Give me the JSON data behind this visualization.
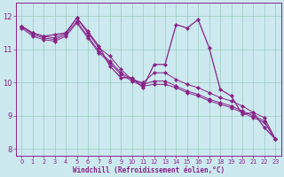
{
  "xlabel": "Windchill (Refroidissement éolien,°C)",
  "background_color": "#cce9f0",
  "line_color": "#882288",
  "grid_color": "#99ccbb",
  "ylim": [
    7.8,
    12.4
  ],
  "xlim": [
    -0.5,
    23.5
  ],
  "yticks": [
    8,
    9,
    10,
    11,
    12
  ],
  "xticks": [
    0,
    1,
    2,
    3,
    4,
    5,
    6,
    7,
    8,
    9,
    10,
    11,
    12,
    13,
    14,
    15,
    16,
    17,
    18,
    19,
    20,
    21,
    22,
    23
  ],
  "series_spiky": [
    11.7,
    11.5,
    11.4,
    11.45,
    11.5,
    11.95,
    11.55,
    11.1,
    10.5,
    10.15,
    10.15,
    9.85,
    10.55,
    10.55,
    11.75,
    11.65,
    11.9,
    11.05,
    9.8,
    9.6,
    9.05,
    9.1,
    8.65,
    8.3
  ],
  "series_linear1": [
    11.7,
    11.5,
    11.4,
    11.35,
    11.5,
    11.95,
    11.5,
    11.05,
    10.8,
    10.4,
    10.1,
    10.0,
    10.3,
    10.3,
    10.1,
    9.95,
    9.85,
    9.7,
    9.55,
    9.45,
    9.3,
    9.1,
    8.95,
    8.3
  ],
  "series_linear2": [
    11.7,
    11.45,
    11.35,
    11.3,
    11.45,
    11.85,
    11.4,
    10.95,
    10.65,
    10.3,
    10.1,
    9.95,
    10.05,
    10.05,
    9.9,
    9.75,
    9.65,
    9.5,
    9.4,
    9.3,
    9.15,
    9.0,
    8.85,
    8.3
  ],
  "series_linear3": [
    11.65,
    11.4,
    11.3,
    11.25,
    11.4,
    11.8,
    11.35,
    10.9,
    10.6,
    10.25,
    10.05,
    9.9,
    9.95,
    9.95,
    9.85,
    9.7,
    9.6,
    9.45,
    9.35,
    9.25,
    9.1,
    8.95,
    8.8,
    8.3
  ],
  "x_hours": [
    0,
    1,
    2,
    3,
    4,
    5,
    6,
    7,
    8,
    9,
    10,
    11,
    12,
    13,
    14,
    15,
    16,
    17,
    18,
    19,
    20,
    21,
    22,
    23
  ]
}
